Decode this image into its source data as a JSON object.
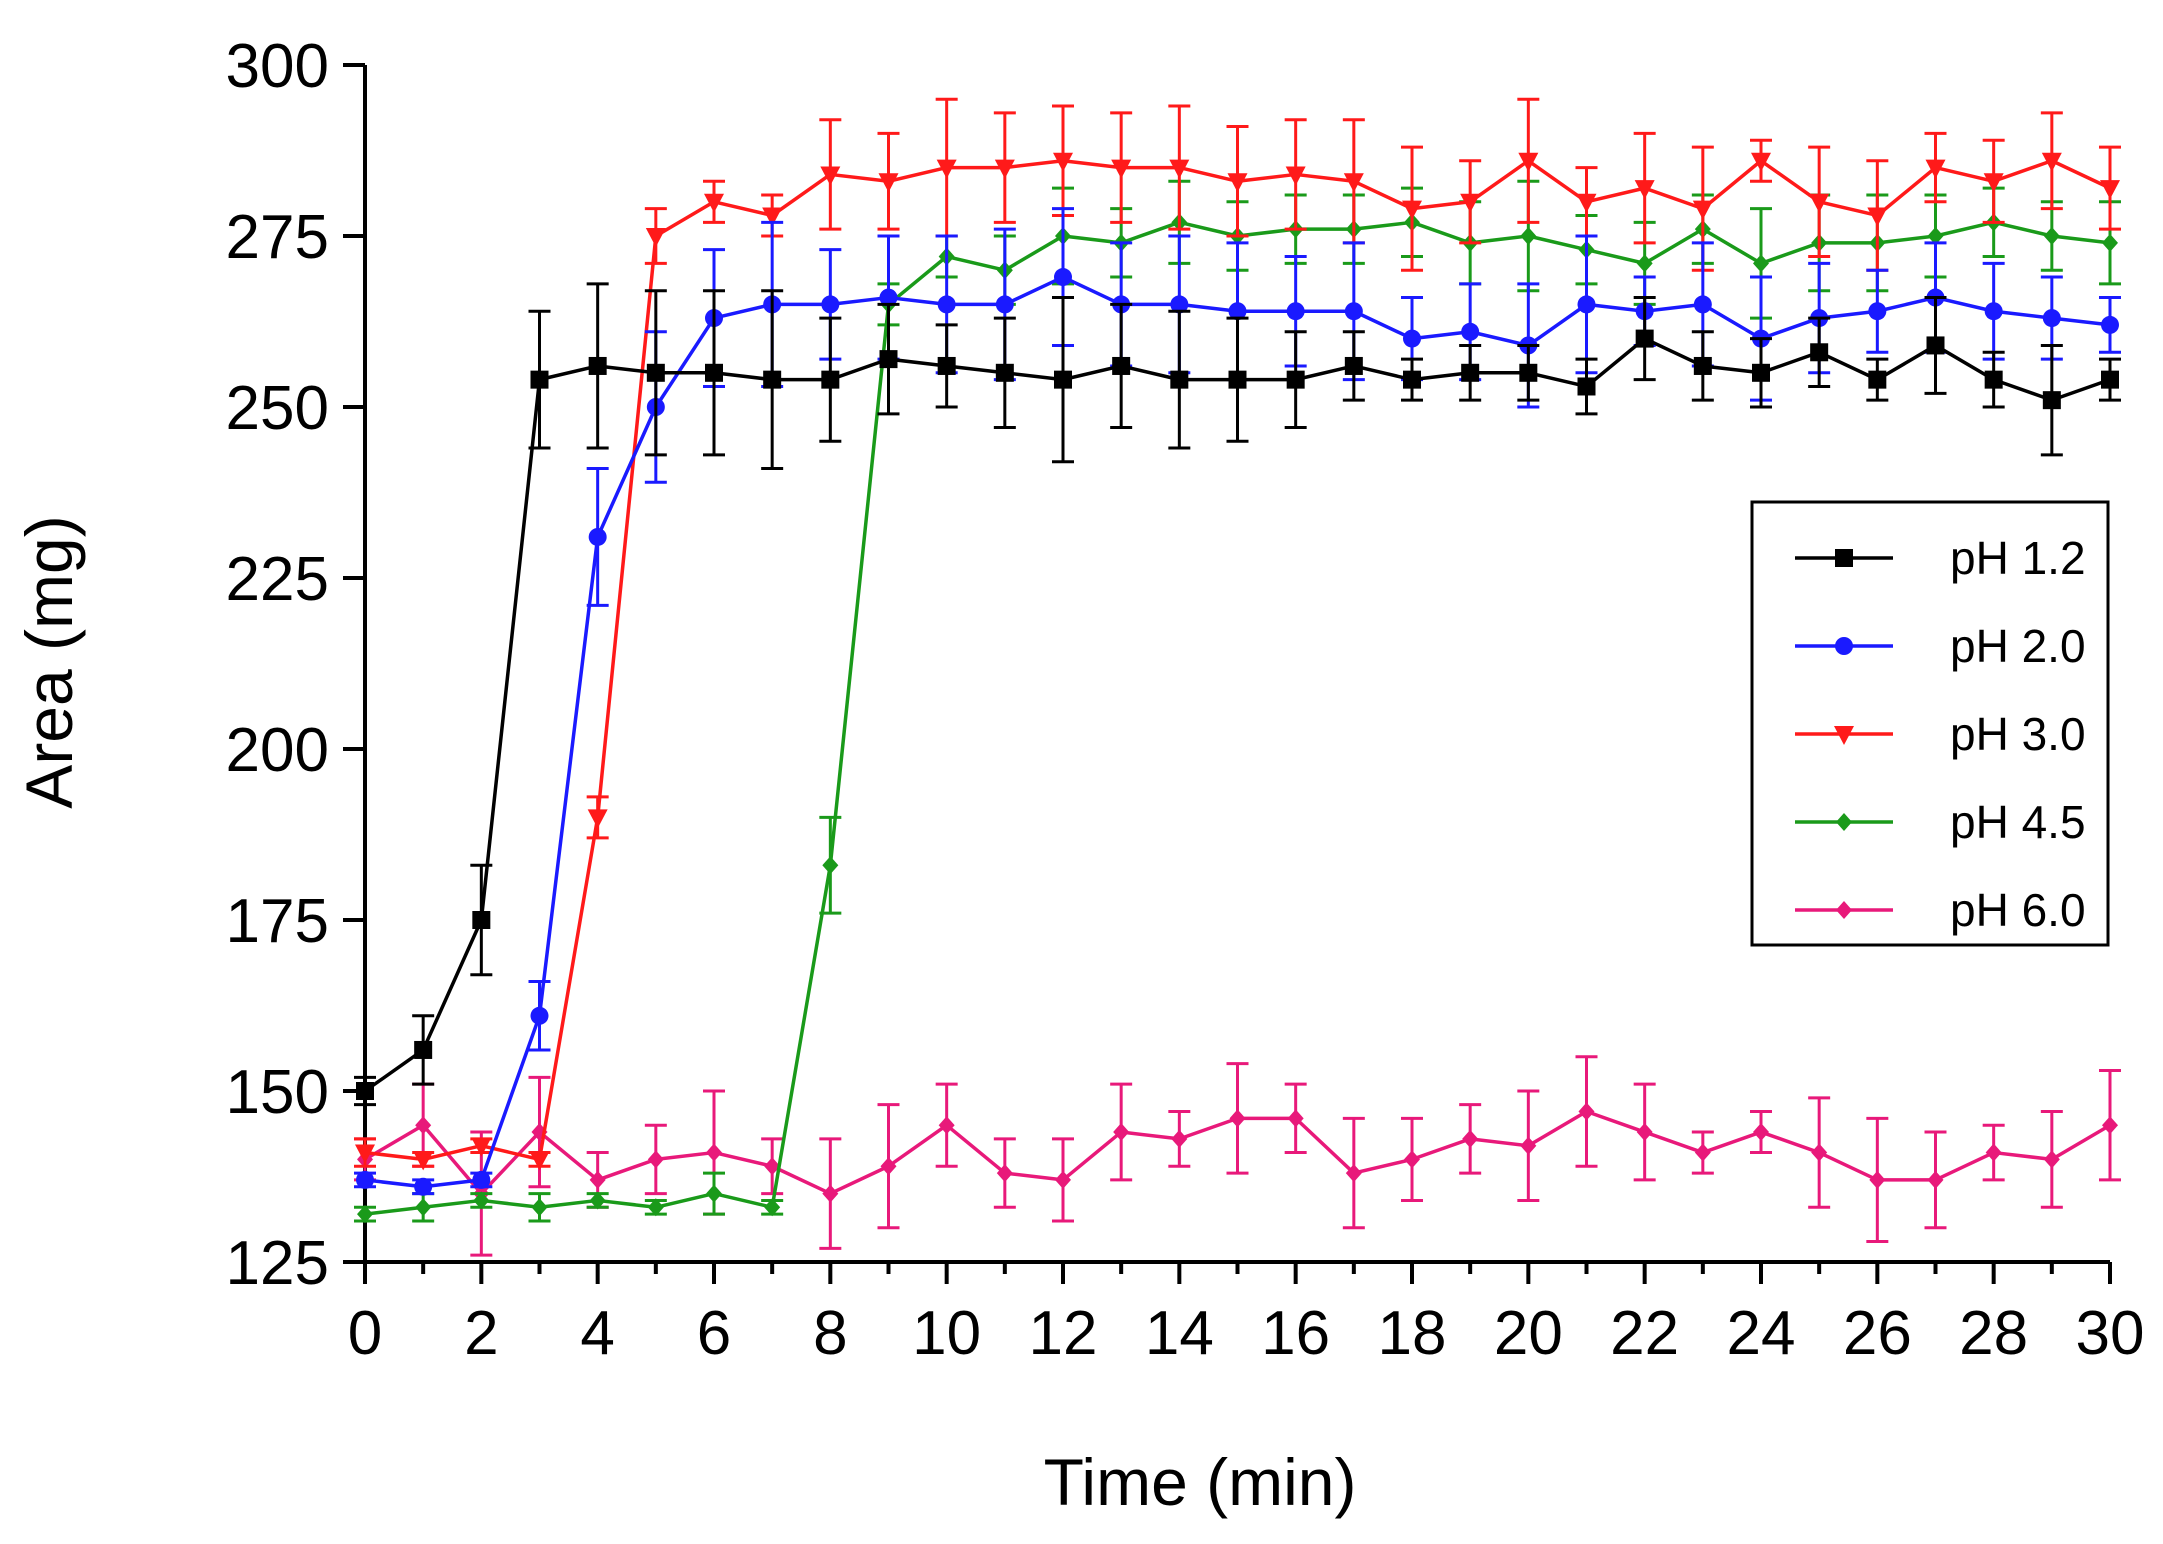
{
  "chart_data": {
    "type": "line",
    "title": "",
    "xlabel": "Time (min)",
    "ylabel": "Area (mg)",
    "xlim": [
      0,
      30
    ],
    "ylim": [
      125,
      300
    ],
    "x_ticks": [
      0,
      2,
      4,
      6,
      8,
      10,
      12,
      14,
      16,
      18,
      20,
      22,
      24,
      26,
      28,
      30
    ],
    "y_ticks": [
      125,
      150,
      175,
      200,
      225,
      250,
      275,
      300
    ],
    "grid": false,
    "legend_position": "right",
    "x": [
      0,
      1,
      2,
      3,
      4,
      5,
      6,
      7,
      8,
      9,
      10,
      11,
      12,
      13,
      14,
      15,
      16,
      17,
      18,
      19,
      20,
      21,
      22,
      23,
      24,
      25,
      26,
      27,
      28,
      29,
      30
    ],
    "series": [
      {
        "name": "pH 1.2",
        "color": "#000000",
        "marker": "square",
        "values": [
          150,
          156,
          175,
          254,
          256,
          255,
          255,
          254,
          254,
          257,
          256,
          255,
          254,
          256,
          254,
          254,
          254,
          256,
          254,
          255,
          255,
          253,
          260,
          256,
          255,
          258,
          254,
          259,
          254,
          251,
          254
        ],
        "errors": [
          2,
          5,
          8,
          10,
          12,
          12,
          12,
          13,
          9,
          8,
          6,
          8,
          12,
          9,
          10,
          9,
          7,
          5,
          3,
          4,
          4,
          4,
          6,
          5,
          5,
          5,
          3,
          7,
          4,
          8,
          3
        ]
      },
      {
        "name": "pH 2.0",
        "color": "#1a1aff",
        "marker": "circle",
        "values": [
          137,
          136,
          137,
          161,
          231,
          250,
          263,
          265,
          265,
          266,
          265,
          265,
          269,
          265,
          265,
          264,
          264,
          264,
          260,
          261,
          259,
          265,
          264,
          265,
          260,
          263,
          264,
          266,
          264,
          263,
          262
        ],
        "errors": [
          1,
          1,
          1,
          5,
          10,
          11,
          10,
          12,
          8,
          9,
          10,
          11,
          10,
          9,
          10,
          10,
          8,
          10,
          6,
          7,
          9,
          10,
          5,
          9,
          9,
          8,
          6,
          8,
          7,
          6,
          4
        ]
      },
      {
        "name": "pH 3.0",
        "color": "#ff1a1a",
        "marker": "triangle-down",
        "values": [
          141,
          140,
          142,
          140,
          190,
          275,
          280,
          278,
          284,
          283,
          285,
          285,
          286,
          285,
          285,
          283,
          284,
          283,
          279,
          280,
          286,
          280,
          282,
          279,
          286,
          280,
          278,
          285,
          283,
          286,
          282
        ],
        "errors": [
          2,
          1,
          1,
          1,
          3,
          4,
          3,
          3,
          8,
          7,
          10,
          8,
          8,
          8,
          9,
          8,
          8,
          9,
          9,
          6,
          9,
          5,
          8,
          9,
          3,
          8,
          8,
          5,
          6,
          7,
          6
        ]
      },
      {
        "name": "pH 4.5",
        "color": "#1a9a1a",
        "marker": "diamond",
        "values": [
          132,
          133,
          134,
          133,
          134,
          133,
          135,
          133,
          183,
          265,
          272,
          270,
          275,
          274,
          277,
          275,
          276,
          276,
          277,
          274,
          275,
          273,
          271,
          276,
          271,
          274,
          274,
          275,
          277,
          275,
          274
        ],
        "errors": [
          1,
          2,
          1,
          2,
          1,
          1,
          3,
          1,
          7,
          3,
          3,
          5,
          7,
          5,
          6,
          5,
          5,
          5,
          5,
          6,
          8,
          5,
          6,
          5,
          8,
          7,
          7,
          6,
          5,
          5,
          6
        ]
      },
      {
        "name": "pH 6.0",
        "color": "#e8197a",
        "marker": "diamond",
        "values": [
          140,
          145,
          135,
          144,
          137,
          140,
          141,
          139,
          135,
          139,
          145,
          138,
          137,
          144,
          143,
          146,
          146,
          138,
          140,
          143,
          142,
          147,
          144,
          141,
          144,
          141,
          137,
          137,
          141,
          140,
          145
        ],
        "errors": [
          3,
          6,
          9,
          8,
          4,
          5,
          9,
          4,
          8,
          9,
          6,
          5,
          6,
          7,
          4,
          8,
          5,
          8,
          6,
          5,
          8,
          8,
          7,
          3,
          3,
          8,
          9,
          7,
          4,
          7,
          8
        ]
      }
    ]
  }
}
